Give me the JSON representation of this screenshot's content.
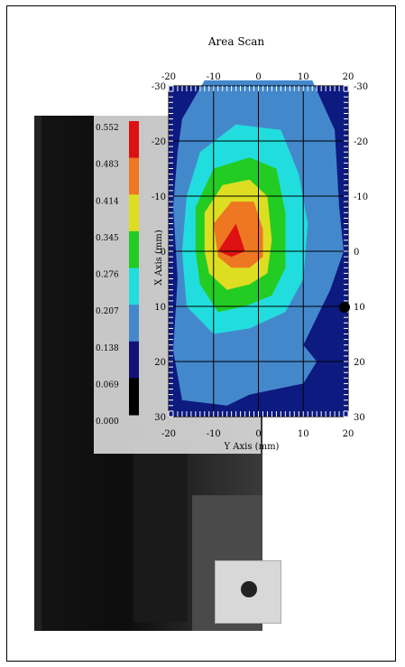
{
  "chart_data": {
    "type": "heatmap",
    "title": "Area Scan",
    "xlabel": "Y Axis (mm)",
    "ylabel": "X Axis (mm)",
    "x_range": [
      -20,
      20
    ],
    "y_range": [
      -30,
      30
    ],
    "x_ticks": [
      "-20",
      "-10",
      "0",
      "10",
      "20"
    ],
    "y_ticks": [
      "-30",
      "-20",
      "-10",
      "0",
      "10",
      "20",
      "30"
    ],
    "grid": true,
    "colorbar": {
      "ticks": [
        "0.552",
        "0.483",
        "0.414",
        "0.345",
        "0.276",
        "0.207",
        "0.138",
        "0.069",
        "0.000"
      ],
      "colors": [
        "#dd1111",
        "#ee7722",
        "#dddd22",
        "#22cc22",
        "#22dddd",
        "#4488cc",
        "#111177",
        "#000000"
      ]
    },
    "contours": [
      {
        "level_color": "#4488cc",
        "points": [
          [
            -17,
            -24
          ],
          [
            -12,
            -31
          ],
          [
            12,
            -31
          ],
          [
            17,
            -22
          ],
          [
            18,
            -8
          ],
          [
            19,
            0
          ],
          [
            16,
            7
          ],
          [
            13,
            12
          ],
          [
            10,
            17
          ],
          [
            13,
            20
          ],
          [
            10,
            24
          ],
          [
            -2,
            26
          ],
          [
            -7,
            28
          ],
          [
            -17,
            27
          ],
          [
            -19,
            18
          ],
          [
            -18,
            5
          ],
          [
            -19,
            -8
          ],
          [
            -18,
            -18
          ]
        ]
      },
      {
        "level_color": "#22dddd",
        "points": [
          [
            -16,
            -10
          ],
          [
            -13,
            -18
          ],
          [
            -5,
            -23
          ],
          [
            5,
            -22
          ],
          [
            9,
            -14
          ],
          [
            11,
            -5
          ],
          [
            10,
            5
          ],
          [
            6,
            11
          ],
          [
            -2,
            14
          ],
          [
            -10,
            15
          ],
          [
            -16,
            10
          ],
          [
            -17,
            0
          ]
        ]
      },
      {
        "level_color": "#22cc22",
        "points": [
          [
            -14,
            -8
          ],
          [
            -10,
            -15
          ],
          [
            -2,
            -17
          ],
          [
            4,
            -15
          ],
          [
            6,
            -7
          ],
          [
            6,
            3
          ],
          [
            3,
            8
          ],
          [
            -3,
            10
          ],
          [
            -9,
            11
          ],
          [
            -13,
            6
          ],
          [
            -14,
            0
          ]
        ]
      },
      {
        "level_color": "#dddd22",
        "points": [
          [
            -12,
            -7
          ],
          [
            -8,
            -12
          ],
          [
            -2,
            -13
          ],
          [
            2,
            -10
          ],
          [
            3,
            -2
          ],
          [
            2,
            4
          ],
          [
            -2,
            6
          ],
          [
            -7,
            7
          ],
          [
            -11,
            4
          ],
          [
            -12,
            0
          ]
        ]
      },
      {
        "level_color": "#ee7722",
        "points": [
          [
            -10,
            -5
          ],
          [
            -6,
            -9
          ],
          [
            -1,
            -9
          ],
          [
            1,
            -4
          ],
          [
            1,
            1
          ],
          [
            -2,
            3
          ],
          [
            -6,
            3
          ],
          [
            -9,
            1
          ]
        ]
      },
      {
        "level_color": "#dd1111",
        "points": [
          [
            -9,
            0
          ],
          [
            -5,
            -5
          ],
          [
            -3,
            0
          ],
          [
            -6,
            1
          ]
        ]
      }
    ]
  }
}
